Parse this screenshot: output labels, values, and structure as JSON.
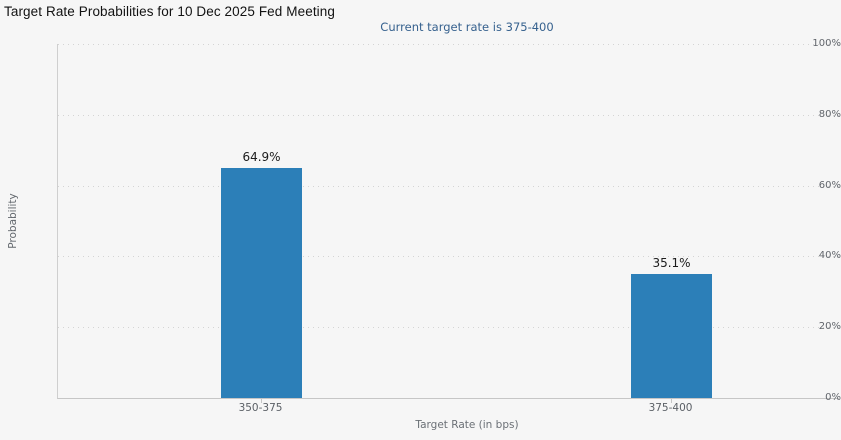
{
  "page": {
    "background": "#f6f6f6"
  },
  "chart_data": {
    "type": "bar",
    "title": "Target Rate Probabilities for 10 Dec 2025 Fed Meeting",
    "subtitle": "Current target rate is 375-400",
    "xlabel": "Target Rate (in bps)",
    "ylabel": "Probability",
    "categories": [
      "350-375",
      "375-400"
    ],
    "values": [
      64.9,
      35.1
    ],
    "value_labels": [
      "64.9%",
      "35.1%"
    ],
    "ylim": [
      0,
      100
    ],
    "yticks": [
      0,
      20,
      40,
      60,
      80,
      100
    ],
    "ytick_labels": [
      "0%",
      "20%",
      "40%",
      "60%",
      "80%",
      "100%"
    ],
    "grid": "horizontal-dotted",
    "legend": "none",
    "colors": {
      "bar": "#2c7fb8",
      "subtitle_text": "#36618e",
      "grid": "#d4d4d4",
      "axis_line": "#c6c6c6",
      "tick_text": "#61656b",
      "value_label_text": "#1c1c1c",
      "title_text": "#121212",
      "background": "#f6f6f6"
    }
  }
}
